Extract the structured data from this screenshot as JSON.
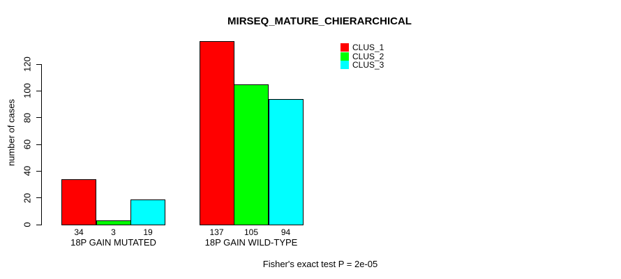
{
  "chart_data": {
    "type": "bar",
    "title": "MIRSEQ_MATURE_CHIERARCHICAL",
    "xlabel": "",
    "ylabel": "number of cases",
    "categories": [
      "18P GAIN MUTATED",
      "18P GAIN WILD-TYPE"
    ],
    "series": [
      {
        "name": "CLUS_1",
        "color": "#FF0000",
        "values": [
          34,
          137
        ]
      },
      {
        "name": "CLUS_2",
        "color": "#00FF00",
        "values": [
          3,
          105
        ]
      },
      {
        "name": "CLUS_3",
        "color": "#00FFFF",
        "values": [
          19,
          94
        ]
      }
    ],
    "yticks": [
      0,
      20,
      40,
      60,
      80,
      100,
      120
    ],
    "ylim": [
      0,
      137
    ],
    "grid": false,
    "legend_position": "top-right",
    "bar_value_labels": true,
    "annotation": "Fisher's exact test P = 2e-05"
  },
  "colors": {
    "background": "#FFFFFF",
    "text": "#000000",
    "bar_border": "#000000"
  }
}
